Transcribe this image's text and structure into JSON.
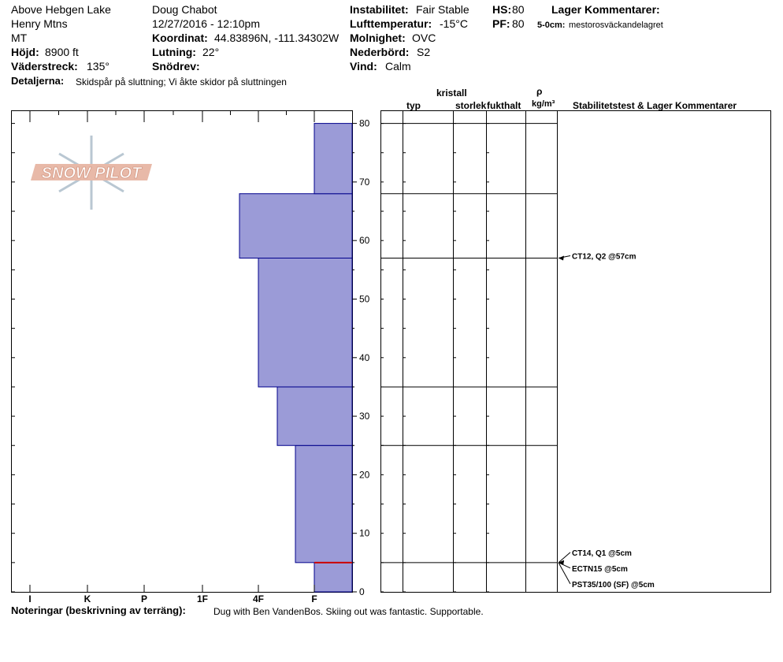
{
  "header": {
    "location": "Above Hebgen Lake",
    "range": "Henry Mtns",
    "state": "MT",
    "elevation_label": "Höjd:",
    "elevation_value": "8900 ft",
    "aspect_label": "Väderstreck:",
    "aspect_value": "135°",
    "details_label": "Detaljerna:",
    "details_value": "Skidspår på sluttning;  Vi åkte skidor på sluttningen",
    "observer": "Doug Chabot",
    "datetime": "12/27/2016 - 12:10pm",
    "coord_label": "Koordinat:",
    "coord_value": "44.83896N, -111.34302W",
    "slope_label": "Lutning:",
    "slope_value": "22°",
    "wind_loading_label": "Snödrev:",
    "stability_label": "Instabilitet:",
    "stability_value": "Fair Stable",
    "air_temp_label": "Lufttemperatur:",
    "air_temp_value": "-15°C",
    "sky_label": "Molnighet:",
    "sky_value": "OVC",
    "precip_label": "Nederbörd:",
    "precip_value": "S2",
    "wind_label": "Vind:",
    "wind_value": "Calm",
    "hs_label": "HS:",
    "hs_value": "80",
    "pf_label": "PF:",
    "pf_value": "80",
    "layer_comments_title": "Lager Kommentarer:",
    "layer_comment_depth": "5-0cm:",
    "layer_comment_text": "mestorosväckandelagret"
  },
  "logo": {
    "text": "SNOW PILOT"
  },
  "table": {
    "col_typ": "typ",
    "col_kristall": "kristall",
    "col_storlek": "storlek",
    "col_fukthalt": "fukthalt",
    "col_rho": "ρ",
    "col_density_unit": "kg/m³",
    "col_stability": "Stabilitetstest & Lager Kommentarer"
  },
  "stability_tests": [
    {
      "label": "CT12, Q2 @57cm",
      "depth": 57
    },
    {
      "label": "CT14, Q1 @5cm",
      "depth": 5
    },
    {
      "label": "ECTN15 @5cm",
      "depth": 5
    },
    {
      "label": "PST35/100 (SF) @5cm",
      "depth": 5
    }
  ],
  "notes": {
    "label": "Noteringar (beskrivning av terräng):",
    "text": "Dug with Ben VandenBos. Skiing out was fantastic. Supportable."
  },
  "colors": {
    "hardness_fill": "#9b9bd7",
    "hardness_stroke": "#00008b",
    "weak_layer": "#cc0000",
    "logo_fill": "#e8b9a8",
    "logo_snowflake": "#b9c7d2"
  },
  "chart_data": {
    "type": "bar",
    "orientation": "horizontal",
    "title": "",
    "xlabel": "",
    "ylabel": "",
    "x_categories": [
      "I",
      "K",
      "P",
      "1F",
      "4F",
      "F"
    ],
    "y_ticks": [
      0,
      10,
      20,
      30,
      40,
      50,
      60,
      70,
      80
    ],
    "ylim": [
      0,
      80
    ],
    "series": [
      {
        "layers": [
          {
            "bottom": 0,
            "top": 5,
            "hardness": "F"
          },
          {
            "bottom": 5,
            "top": 25,
            "hardness": "F+"
          },
          {
            "bottom": 25,
            "top": 35,
            "hardness": "4F-"
          },
          {
            "bottom": 35,
            "top": 57,
            "hardness": "4F"
          },
          {
            "bottom": 57,
            "top": 68,
            "hardness": "4F+"
          },
          {
            "bottom": 68,
            "top": 80,
            "hardness": "F"
          }
        ]
      }
    ],
    "layer_boundaries": [
      5,
      25,
      35,
      57,
      68,
      80
    ],
    "weak_layer_depth": 5
  }
}
